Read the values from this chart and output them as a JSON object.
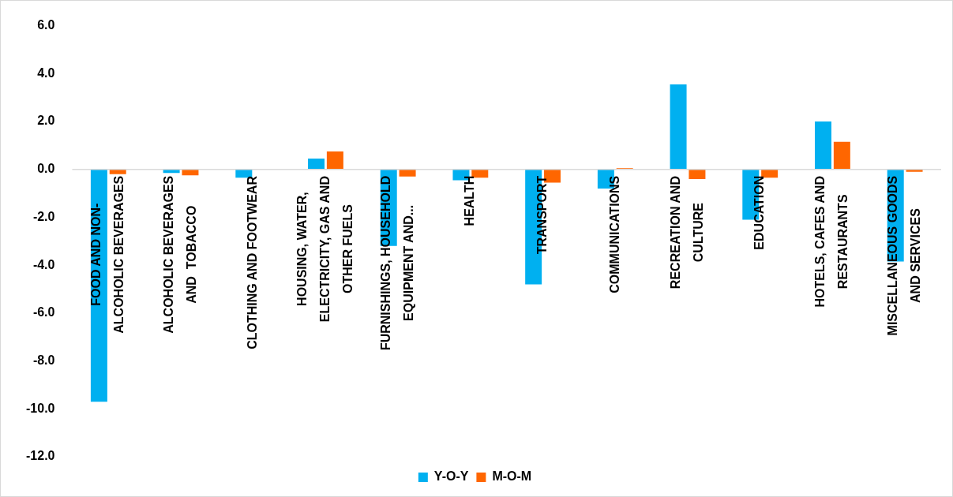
{
  "chart_data": {
    "type": "bar",
    "categories": [
      "FOOD AND NON-ALCOHOLIC BEVERAGES",
      "ALCOHOLIC BEVERAGES AND  TOBACCO",
      "CLOTHING AND FOOTWEAR",
      "HOUSING, WATER, ELECTRICITY, GAS AND OTHER FUELS",
      "FURNISHINGS, HOUSEHOLD EQUIPMENT AND...",
      "HEALTH",
      "TRANSPORT",
      "COMMUNICATIONS",
      "RECREATION AND CULTURE",
      "EDUCATION",
      "HOTELS, CAFES AND RESTAURANTS",
      "MISCELLANEOUS GOODS AND SERVICES"
    ],
    "series": [
      {
        "name": "Y-O-Y",
        "color": "#00b0f0",
        "values": [
          -9.7,
          -0.15,
          -0.35,
          0.45,
          -3.2,
          -0.45,
          -4.8,
          -0.8,
          3.55,
          -2.1,
          2.0,
          -3.85
        ]
      },
      {
        "name": "M-O-M",
        "color": "#ff6600",
        "values": [
          -0.2,
          -0.25,
          0,
          0.75,
          -0.3,
          -0.35,
          -0.55,
          0.05,
          -0.4,
          -0.35,
          1.15,
          -0.1
        ]
      }
    ],
    "ylim": [
      -12,
      6
    ],
    "yticks": [
      {
        "value": -12,
        "label": "-12.0"
      },
      {
        "value": -10,
        "label": "-10.0"
      },
      {
        "value": -8,
        "label": "-8.0"
      },
      {
        "value": -6,
        "label": "-6.0"
      },
      {
        "value": -4,
        "label": "-4.0"
      },
      {
        "value": -2,
        "label": "-2.0"
      },
      {
        "value": 0,
        "label": "0.0"
      },
      {
        "value": 2,
        "label": "2.0"
      },
      {
        "value": 4,
        "label": "4.0"
      },
      {
        "value": 6,
        "label": "6.0"
      }
    ],
    "grid": false,
    "legend": "bottom"
  }
}
